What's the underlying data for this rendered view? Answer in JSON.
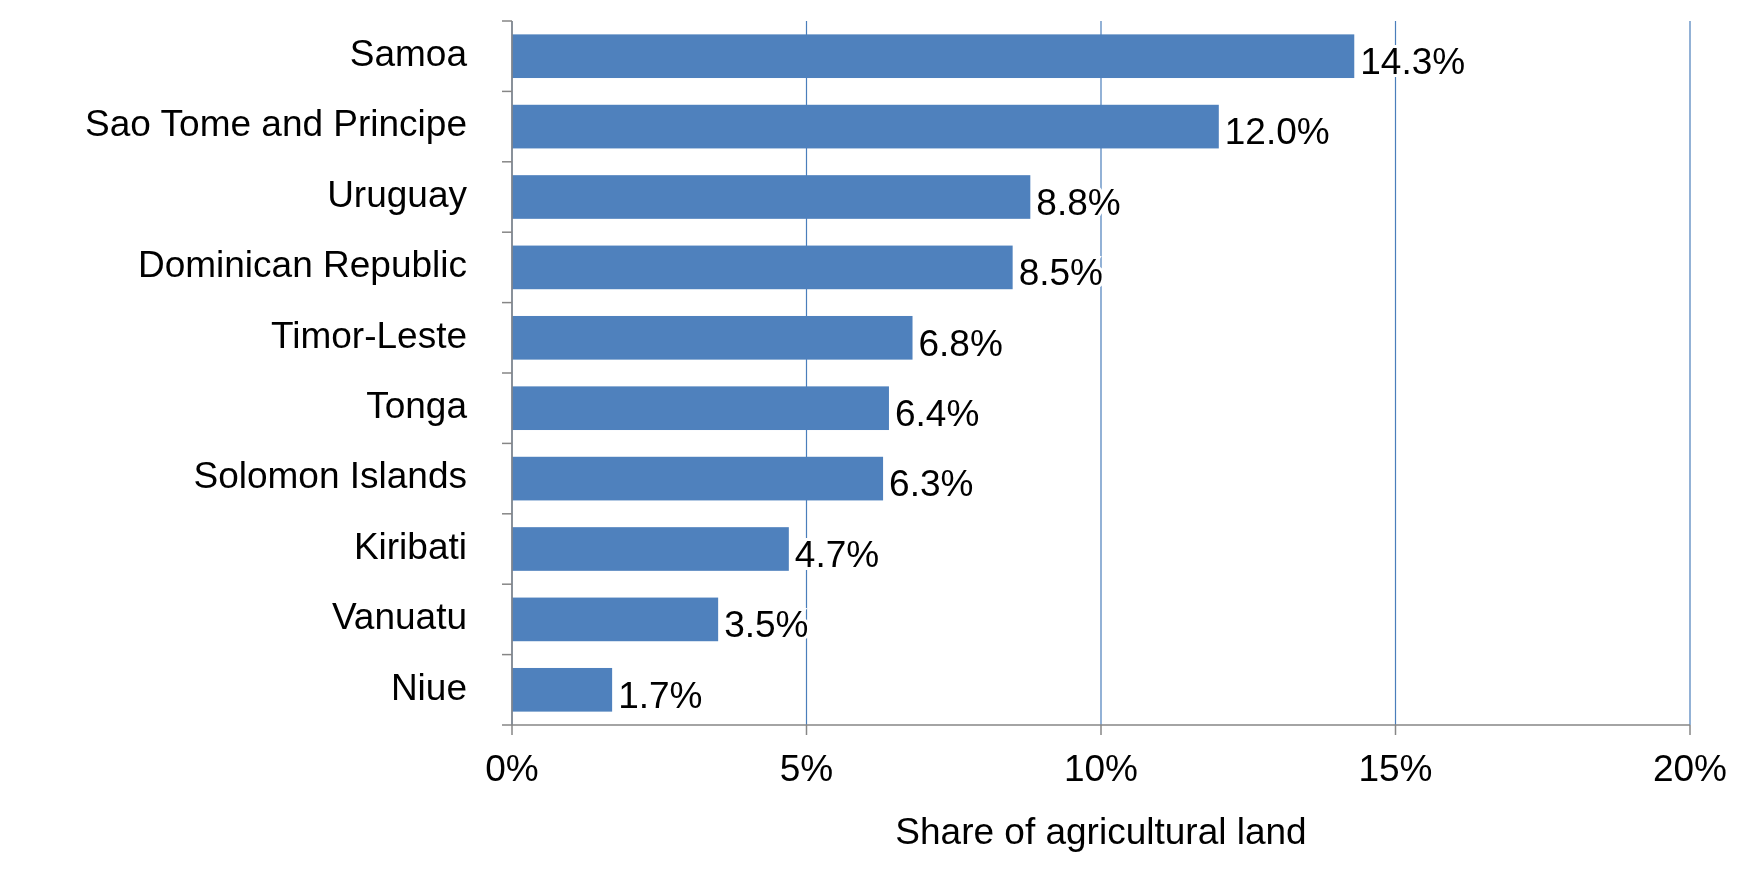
{
  "chart_data": {
    "type": "bar",
    "orientation": "horizontal",
    "xlabel": "Share of agricultural land",
    "categories": [
      "Samoa",
      "Sao Tome and Principe",
      "Uruguay",
      "Dominican Republic",
      "Timor-Leste",
      "Tonga",
      "Solomon Islands",
      "Kiribati",
      "Vanuatu",
      "Niue"
    ],
    "values": [
      14.3,
      12.0,
      8.8,
      8.5,
      6.8,
      6.4,
      6.3,
      4.7,
      3.5,
      1.7
    ],
    "value_labels": [
      "14.3%",
      "12.0%",
      "8.8%",
      "8.5%",
      "6.8%",
      "6.4%",
      "6.3%",
      "4.7%",
      "3.5%",
      "1.7%"
    ],
    "color": "#4f81bd",
    "xlim": [
      0,
      20
    ],
    "xticks": [
      {
        "value": 0,
        "label": "0%"
      },
      {
        "value": 5,
        "label": "5%"
      },
      {
        "value": 10,
        "label": "10%"
      },
      {
        "value": 15,
        "label": "15%"
      },
      {
        "value": 20,
        "label": "20%"
      }
    ],
    "grid": "x"
  }
}
